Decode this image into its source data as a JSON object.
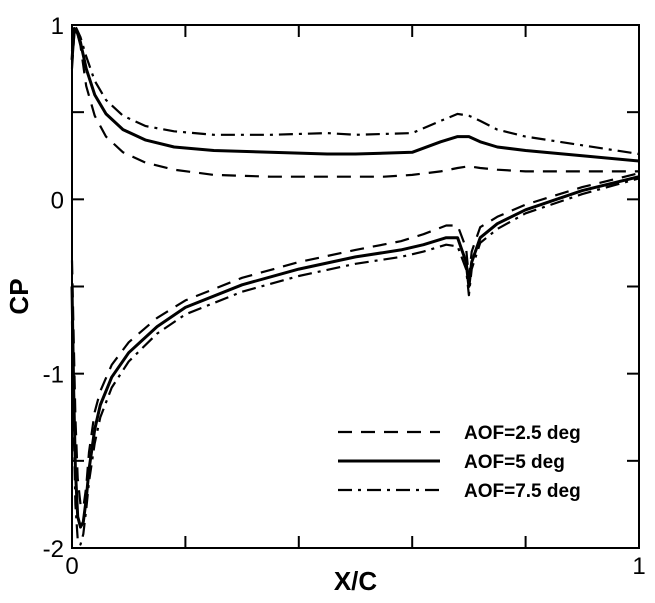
{
  "chart_data": {
    "type": "line",
    "title": "",
    "xlabel": "X/C",
    "ylabel": "CP",
    "xlim": [
      0,
      1
    ],
    "ylim": [
      -2,
      1
    ],
    "x_major_ticks": [
      0,
      1
    ],
    "x_minor_ticks": [
      0.2,
      0.4,
      0.6,
      0.8
    ],
    "y_major_ticks": [
      -2,
      -1,
      0,
      1
    ],
    "y_minor_ticks": [
      -1.5,
      -0.5,
      0.5
    ],
    "x_tick_labels": [
      "0",
      "1"
    ],
    "y_tick_labels": [
      "-2",
      "-1",
      "0",
      "1"
    ],
    "grid": false,
    "legend_position": "bottom-right",
    "series": [
      {
        "name": "AOF=2.5 deg",
        "line_style": "dashed",
        "upper": {
          "x": [
            0.0,
            0.004,
            0.008,
            0.015,
            0.025,
            0.04,
            0.06,
            0.09,
            0.13,
            0.18,
            0.25,
            0.35,
            0.45,
            0.55,
            0.6,
            0.65,
            0.68,
            0.7,
            0.72,
            0.75,
            0.8,
            0.9,
            1.0
          ],
          "y": [
            0.75,
            0.95,
            0.97,
            0.88,
            0.65,
            0.48,
            0.36,
            0.27,
            0.21,
            0.17,
            0.14,
            0.13,
            0.13,
            0.13,
            0.14,
            0.16,
            0.18,
            0.19,
            0.18,
            0.17,
            0.16,
            0.16,
            0.16
          ]
        },
        "lower": {
          "x": [
            0.0,
            0.003,
            0.006,
            0.01,
            0.015,
            0.02,
            0.025,
            0.03,
            0.04,
            0.05,
            0.07,
            0.1,
            0.15,
            0.2,
            0.3,
            0.4,
            0.5,
            0.58,
            0.62,
            0.66,
            0.68,
            0.695,
            0.7,
            0.705,
            0.72,
            0.75,
            0.8,
            0.9,
            1.0
          ],
          "y": [
            -0.35,
            -0.8,
            -1.25,
            -1.6,
            -1.75,
            -1.77,
            -1.65,
            -1.45,
            -1.22,
            -1.1,
            -0.95,
            -0.82,
            -0.68,
            -0.58,
            -0.45,
            -0.36,
            -0.29,
            -0.24,
            -0.2,
            -0.15,
            -0.15,
            -0.28,
            -0.45,
            -0.3,
            -0.16,
            -0.1,
            -0.03,
            0.07,
            0.15
          ]
        }
      },
      {
        "name": "AOF=5 deg",
        "line_style": "solid",
        "upper": {
          "x": [
            0.0,
            0.004,
            0.008,
            0.015,
            0.025,
            0.04,
            0.06,
            0.09,
            0.13,
            0.18,
            0.25,
            0.35,
            0.45,
            0.5,
            0.6,
            0.65,
            0.68,
            0.7,
            0.72,
            0.75,
            0.8,
            0.9,
            1.0
          ],
          "y": [
            0.8,
            0.98,
            0.97,
            0.9,
            0.75,
            0.6,
            0.49,
            0.4,
            0.34,
            0.3,
            0.28,
            0.27,
            0.26,
            0.26,
            0.27,
            0.33,
            0.36,
            0.36,
            0.33,
            0.3,
            0.28,
            0.25,
            0.22
          ]
        },
        "lower": {
          "x": [
            0.0,
            0.003,
            0.006,
            0.01,
            0.015,
            0.02,
            0.025,
            0.03,
            0.04,
            0.05,
            0.07,
            0.1,
            0.15,
            0.2,
            0.3,
            0.4,
            0.5,
            0.58,
            0.62,
            0.66,
            0.68,
            0.695,
            0.7,
            0.705,
            0.72,
            0.75,
            0.8,
            0.9,
            1.0
          ],
          "y": [
            -0.5,
            -1.1,
            -1.55,
            -1.82,
            -1.88,
            -1.85,
            -1.72,
            -1.55,
            -1.32,
            -1.18,
            -1.02,
            -0.88,
            -0.73,
            -0.62,
            -0.49,
            -0.4,
            -0.33,
            -0.29,
            -0.26,
            -0.22,
            -0.22,
            -0.36,
            -0.5,
            -0.36,
            -0.22,
            -0.14,
            -0.06,
            0.05,
            0.13
          ]
        }
      },
      {
        "name": "AOF=7.5 deg",
        "line_style": "dash-dot",
        "upper": {
          "x": [
            0.0,
            0.004,
            0.008,
            0.015,
            0.025,
            0.04,
            0.06,
            0.09,
            0.13,
            0.18,
            0.25,
            0.35,
            0.45,
            0.5,
            0.6,
            0.65,
            0.68,
            0.7,
            0.72,
            0.75,
            0.8,
            0.9,
            1.0
          ],
          "y": [
            0.85,
            1.0,
            0.98,
            0.93,
            0.82,
            0.68,
            0.57,
            0.48,
            0.42,
            0.39,
            0.37,
            0.37,
            0.38,
            0.37,
            0.38,
            0.45,
            0.49,
            0.48,
            0.45,
            0.4,
            0.36,
            0.31,
            0.26
          ]
        },
        "lower": {
          "x": [
            0.0,
            0.003,
            0.006,
            0.01,
            0.015,
            0.02,
            0.025,
            0.03,
            0.04,
            0.05,
            0.07,
            0.1,
            0.15,
            0.2,
            0.3,
            0.4,
            0.5,
            0.58,
            0.62,
            0.66,
            0.68,
            0.695,
            0.7,
            0.705,
            0.72,
            0.75,
            0.8,
            0.9,
            1.0
          ],
          "y": [
            -0.7,
            -1.3,
            -1.75,
            -1.95,
            -1.98,
            -1.92,
            -1.78,
            -1.62,
            -1.4,
            -1.25,
            -1.08,
            -0.93,
            -0.77,
            -0.66,
            -0.53,
            -0.44,
            -0.37,
            -0.33,
            -0.3,
            -0.26,
            -0.27,
            -0.4,
            -0.55,
            -0.4,
            -0.25,
            -0.17,
            -0.08,
            0.03,
            0.12
          ]
        }
      }
    ]
  }
}
